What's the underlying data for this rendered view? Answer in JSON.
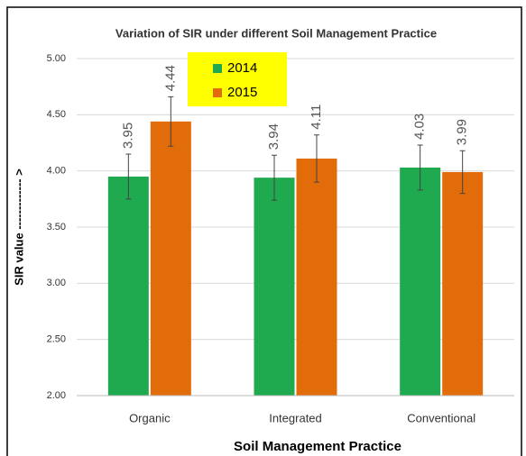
{
  "chart_data": {
    "type": "bar",
    "title": "Variation  of SIR under different Soil Management Practice",
    "x_label": "Soil  Management Practice",
    "y_label": "SIR value ------------- >",
    "categories": [
      "Organic",
      "Integrated",
      "Conventional"
    ],
    "series": [
      {
        "name": "2014",
        "color": "#1faa4f",
        "values": [
          3.95,
          3.94,
          4.03
        ],
        "errors": [
          0.2,
          0.2,
          0.2
        ]
      },
      {
        "name": "2015",
        "color": "#e36c0a",
        "values": [
          4.44,
          4.11,
          3.99
        ],
        "errors": [
          0.22,
          0.21,
          0.19
        ]
      }
    ],
    "ylim": [
      2,
      5
    ],
    "yticks": [
      {
        "value": 2,
        "label": "2.00"
      },
      {
        "value": 2.5,
        "label": "2.50"
      },
      {
        "value": 3,
        "label": "3.00"
      },
      {
        "value": 3.5,
        "label": "3.50"
      },
      {
        "value": 4,
        "label": "4.00"
      },
      {
        "value": 4.5,
        "label": "4.50"
      },
      {
        "value": 5,
        "label": "5.00"
      }
    ],
    "grid": true,
    "legend": "top",
    "legend_color": "#ffff00"
  }
}
